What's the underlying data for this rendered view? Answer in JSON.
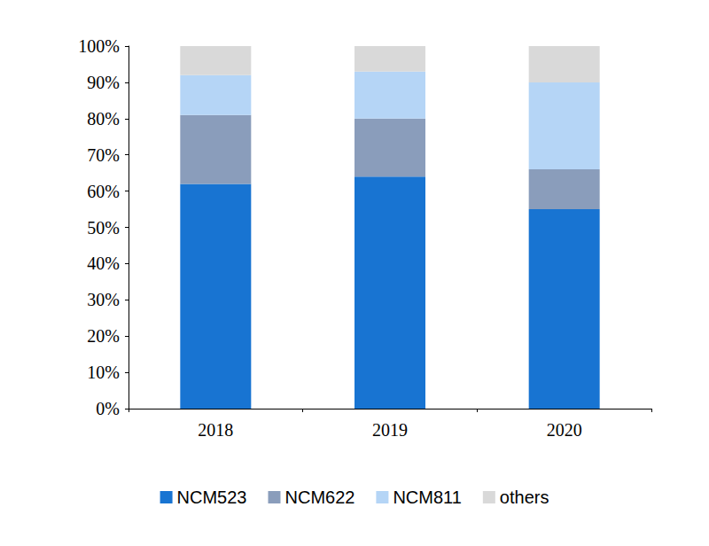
{
  "chart_data": {
    "type": "bar",
    "stacked": true,
    "grid": false,
    "legend": "bottom",
    "categories": [
      "2018",
      "2019",
      "2020"
    ],
    "series": [
      {
        "name": "NCM523",
        "color": "#1874d2",
        "values": [
          62,
          64,
          55
        ]
      },
      {
        "name": "NCM622",
        "color": "#8a9dbb",
        "values": [
          19,
          16,
          11
        ]
      },
      {
        "name": "NCM811",
        "color": "#b5d5f6",
        "values": [
          11,
          13,
          24
        ]
      },
      {
        "name": "others",
        "color": "#d9d9d9",
        "values": [
          8,
          7,
          10
        ]
      }
    ],
    "ylim": [
      0,
      100
    ],
    "yticks": [
      {
        "value": 0,
        "label": "0%"
      },
      {
        "value": 10,
        "label": "10%"
      },
      {
        "value": 20,
        "label": "20%"
      },
      {
        "value": 30,
        "label": "30%"
      },
      {
        "value": 40,
        "label": "40%"
      },
      {
        "value": 50,
        "label": "50%"
      },
      {
        "value": 60,
        "label": "60%"
      },
      {
        "value": 70,
        "label": "70%"
      },
      {
        "value": 80,
        "label": "80%"
      },
      {
        "value": 90,
        "label": "90%"
      },
      {
        "value": 100,
        "label": "100%"
      }
    ]
  }
}
